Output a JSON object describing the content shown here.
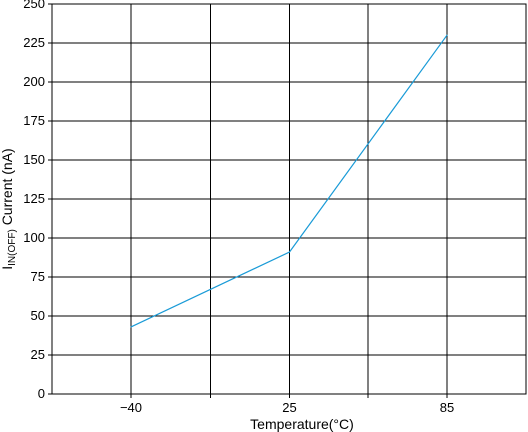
{
  "chart_data": {
    "type": "line",
    "title": "",
    "xlabel": "Temperature(°C)",
    "ylabel": {
      "main": "I",
      "subscript": "IN(OFF)",
      "rest": " Current (nA)"
    },
    "x_categories": [
      "−40",
      "25",
      "85"
    ],
    "y_ticks": [
      "250",
      "225",
      "200",
      "175",
      "150",
      "125",
      "100",
      "75",
      "50",
      "25",
      "0"
    ],
    "ylim": [
      0,
      250
    ],
    "grid": true,
    "series": [
      {
        "x": [
          -40,
          25,
          85
        ],
        "values": [
          43,
          91,
          230
        ],
        "color": "#1a9bd7"
      }
    ]
  }
}
